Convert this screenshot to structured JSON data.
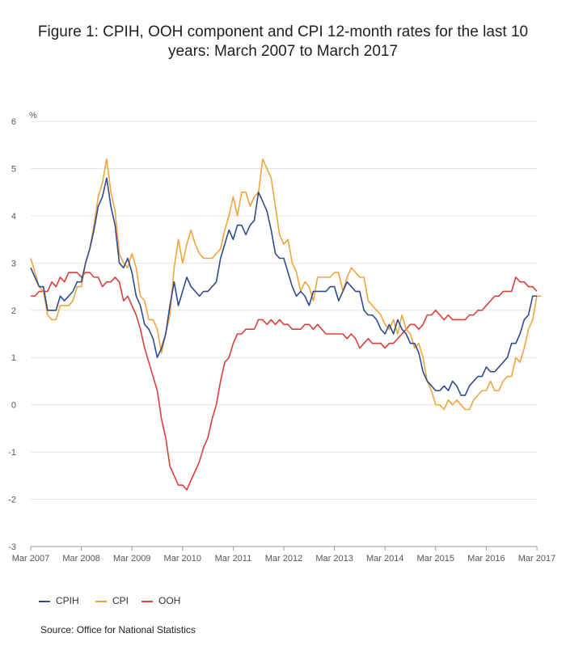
{
  "chart_data": {
    "type": "line",
    "title": "Figure 1: CPIH, OOH component and CPI 12-month rates for the last 10 years: March 2007 to March 2017",
    "ylabel": "%",
    "xlabel": "",
    "ylim": [
      -3,
      6
    ],
    "yticks": [
      6,
      5,
      4,
      3,
      2,
      1,
      0,
      -1,
      -2,
      -3
    ],
    "x_start": "Mar 2007",
    "x_end": "Mar 2017",
    "x_tick_labels": [
      "Mar 2007",
      "Mar 2008",
      "Mar 2009",
      "Mar 2010",
      "Mar 2011",
      "Mar 2012",
      "Mar 2013",
      "Mar 2014",
      "Mar 2015",
      "Mar 2016",
      "Mar 2017"
    ],
    "grid": "horizontal",
    "legend_position": "bottom-left",
    "source": "Source: Office for National Statistics",
    "series": [
      {
        "name": "CPIH",
        "color": "#2f4a8f",
        "values": [
          2.9,
          2.7,
          2.5,
          2.5,
          2.0,
          2.0,
          2.0,
          2.3,
          2.2,
          2.3,
          2.4,
          2.6,
          2.6,
          3.0,
          3.3,
          3.7,
          4.2,
          4.4,
          4.8,
          4.2,
          3.8,
          3.0,
          2.9,
          3.1,
          2.8,
          2.3,
          2.1,
          1.7,
          1.6,
          1.4,
          1.0,
          1.2,
          1.5,
          2.1,
          2.6,
          2.1,
          2.4,
          2.7,
          2.5,
          2.4,
          2.3,
          2.4,
          2.4,
          2.5,
          2.6,
          3.1,
          3.4,
          3.7,
          3.5,
          3.8,
          3.8,
          3.6,
          3.8,
          3.9,
          4.5,
          4.3,
          4.1,
          3.7,
          3.2,
          3.1,
          3.1,
          2.8,
          2.5,
          2.3,
          2.4,
          2.3,
          2.1,
          2.4,
          2.4,
          2.4,
          2.4,
          2.5,
          2.5,
          2.2,
          2.4,
          2.6,
          2.5,
          2.4,
          2.4,
          2.0,
          1.9,
          1.9,
          1.8,
          1.6,
          1.5,
          1.7,
          1.5,
          1.8,
          1.6,
          1.5,
          1.3,
          1.3,
          1.1,
          0.7,
          0.5,
          0.4,
          0.3,
          0.3,
          0.4,
          0.3,
          0.5,
          0.4,
          0.2,
          0.2,
          0.4,
          0.5,
          0.6,
          0.6,
          0.8,
          0.7,
          0.7,
          0.8,
          0.9,
          1.0,
          1.3,
          1.3,
          1.5,
          1.8,
          1.9,
          2.3,
          2.3
        ]
      },
      {
        "name": "CPI",
        "color": "#f0a43c",
        "values": [
          3.1,
          2.8,
          2.5,
          2.4,
          1.9,
          1.8,
          1.8,
          2.1,
          2.1,
          2.1,
          2.2,
          2.5,
          2.5,
          3.0,
          3.3,
          3.8,
          4.4,
          4.7,
          5.2,
          4.5,
          4.1,
          3.2,
          3.0,
          2.9,
          3.2,
          2.9,
          2.3,
          2.2,
          1.8,
          1.8,
          1.6,
          1.1,
          1.5,
          1.9,
          2.9,
          3.5,
          3.0,
          3.4,
          3.7,
          3.4,
          3.2,
          3.1,
          3.1,
          3.1,
          3.2,
          3.3,
          3.7,
          4.0,
          4.4,
          4.0,
          4.5,
          4.5,
          4.2,
          4.4,
          4.5,
          5.2,
          5.0,
          4.8,
          4.2,
          3.6,
          3.4,
          3.5,
          3.0,
          2.8,
          2.4,
          2.6,
          2.5,
          2.2,
          2.7,
          2.7,
          2.7,
          2.7,
          2.8,
          2.8,
          2.4,
          2.7,
          2.9,
          2.8,
          2.7,
          2.7,
          2.2,
          2.1,
          2.0,
          1.9,
          1.7,
          1.6,
          1.8,
          1.5,
          1.9,
          1.6,
          1.5,
          1.2,
          1.3,
          1.0,
          0.5,
          0.3,
          0.0,
          0.0,
          -0.1,
          0.1,
          0.0,
          0.1,
          0.0,
          -0.1,
          -0.1,
          0.1,
          0.2,
          0.3,
          0.3,
          0.5,
          0.3,
          0.3,
          0.5,
          0.6,
          0.6,
          1.0,
          0.9,
          1.2,
          1.6,
          1.8,
          2.3,
          2.3
        ]
      },
      {
        "name": "OOH",
        "color": "#d9403a",
        "values": [
          2.3,
          2.3,
          2.4,
          2.4,
          2.4,
          2.6,
          2.5,
          2.7,
          2.6,
          2.8,
          2.8,
          2.8,
          2.7,
          2.8,
          2.8,
          2.7,
          2.7,
          2.5,
          2.6,
          2.6,
          2.7,
          2.6,
          2.2,
          2.3,
          2.1,
          1.9,
          1.6,
          1.2,
          0.9,
          0.6,
          0.3,
          -0.3,
          -0.7,
          -1.3,
          -1.5,
          -1.7,
          -1.7,
          -1.8,
          -1.6,
          -1.4,
          -1.2,
          -0.9,
          -0.7,
          -0.3,
          0.0,
          0.5,
          0.9,
          1.0,
          1.3,
          1.5,
          1.5,
          1.6,
          1.6,
          1.6,
          1.8,
          1.8,
          1.7,
          1.8,
          1.7,
          1.8,
          1.7,
          1.7,
          1.6,
          1.6,
          1.6,
          1.7,
          1.7,
          1.6,
          1.7,
          1.6,
          1.5,
          1.5,
          1.5,
          1.5,
          1.5,
          1.4,
          1.5,
          1.4,
          1.2,
          1.3,
          1.4,
          1.3,
          1.3,
          1.3,
          1.2,
          1.3,
          1.3,
          1.4,
          1.5,
          1.6,
          1.7,
          1.7,
          1.6,
          1.7,
          1.9,
          1.9,
          2.0,
          1.9,
          1.8,
          1.9,
          1.8,
          1.8,
          1.8,
          1.8,
          1.9,
          1.9,
          2.0,
          2.0,
          2.1,
          2.2,
          2.3,
          2.3,
          2.4,
          2.4,
          2.4,
          2.7,
          2.6,
          2.6,
          2.5,
          2.5,
          2.4
        ]
      }
    ]
  }
}
